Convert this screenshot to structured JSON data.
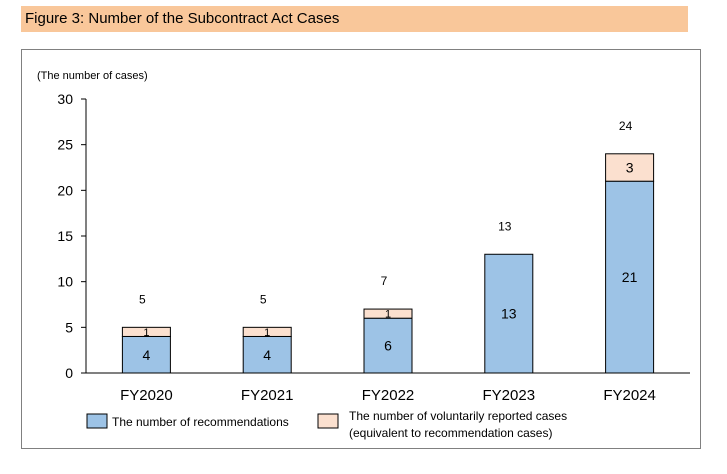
{
  "figure_title": "Figure 3: Number of the Subcontract Act Cases",
  "chart_data": {
    "type": "bar",
    "stacked": true,
    "categories": [
      "FY2020",
      "FY2021",
      "FY2022",
      "FY2023",
      "FY2024"
    ],
    "series": [
      {
        "name": "The number of recommendations",
        "values": [
          4,
          4,
          6,
          13,
          21
        ],
        "color": "#9dc3e6"
      },
      {
        "name": "The number of voluntarily reported cases (equivalent to recommendation cases)",
        "name_lines": [
          "The number of voluntarily reported cases",
          "(equivalent to recommendation cases)"
        ],
        "values": [
          1,
          1,
          1,
          0,
          3
        ],
        "color": "#fbe0cf"
      }
    ],
    "totals": [
      5,
      5,
      7,
      13,
      24
    ],
    "ylabel": "(The number of cases)",
    "ylim": [
      0,
      30
    ],
    "yticks": [
      0,
      5,
      10,
      15,
      20,
      25,
      30
    ],
    "grid": false,
    "legend_position": "bottom"
  }
}
